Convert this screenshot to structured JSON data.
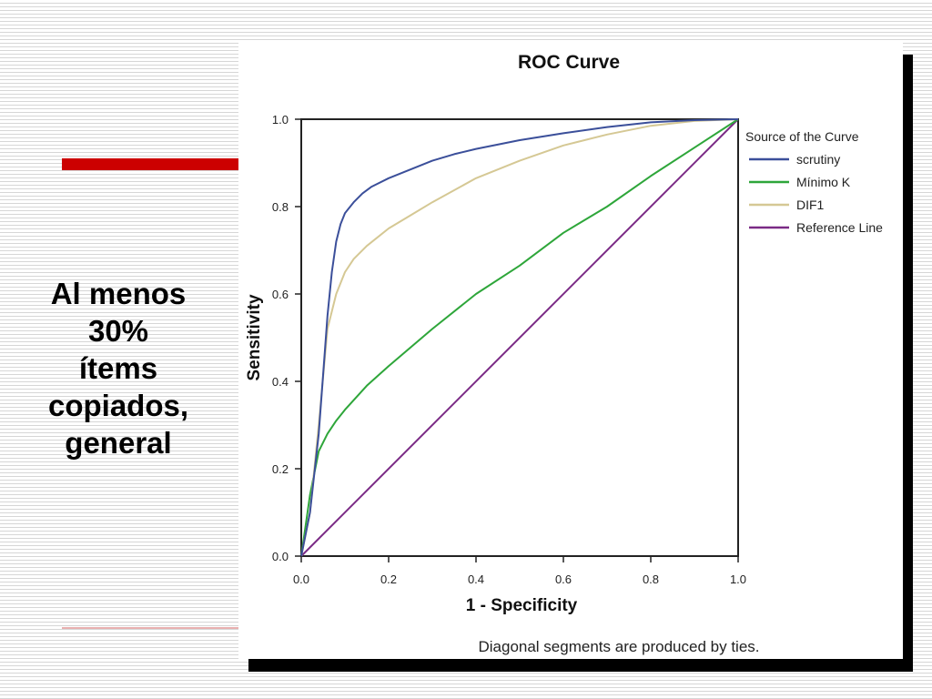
{
  "slide": {
    "side_title": "Al menos\n30%\nítems\ncopiados,\ngeneral",
    "accent_color": "#cc0000"
  },
  "chart_data": {
    "type": "line",
    "title": "ROC Curve",
    "xlabel": "1 - Specificity",
    "ylabel": "Sensitivity",
    "xlim": [
      0,
      1
    ],
    "ylim": [
      0,
      1
    ],
    "xticks": [
      "0.0",
      "0.2",
      "0.4",
      "0.6",
      "0.8",
      "1.0"
    ],
    "yticks": [
      "0.0",
      "0.2",
      "0.4",
      "0.6",
      "0.8",
      "1.0"
    ],
    "legend_title": "Source of the Curve",
    "legend_position": "right",
    "footnote": "Diagonal segments are produced by ties.",
    "grid": false,
    "series": [
      {
        "name": "scrutiny",
        "color": "#3b4f9a",
        "x": [
          0,
          0.02,
          0.04,
          0.06,
          0.07,
          0.08,
          0.09,
          0.1,
          0.12,
          0.14,
          0.16,
          0.2,
          0.25,
          0.3,
          0.35,
          0.4,
          0.5,
          0.6,
          0.7,
          0.8,
          0.9,
          1.0
        ],
        "y": [
          0,
          0.1,
          0.28,
          0.55,
          0.65,
          0.72,
          0.76,
          0.785,
          0.81,
          0.83,
          0.845,
          0.865,
          0.885,
          0.905,
          0.92,
          0.932,
          0.952,
          0.968,
          0.982,
          0.993,
          0.998,
          1.0
        ]
      },
      {
        "name": "Mínimo K",
        "color": "#2ea63a",
        "x": [
          0,
          0.02,
          0.04,
          0.06,
          0.08,
          0.1,
          0.15,
          0.2,
          0.3,
          0.4,
          0.5,
          0.6,
          0.7,
          0.8,
          0.9,
          1.0
        ],
        "y": [
          0,
          0.14,
          0.24,
          0.28,
          0.31,
          0.335,
          0.39,
          0.435,
          0.52,
          0.6,
          0.665,
          0.74,
          0.8,
          0.87,
          0.935,
          1.0
        ]
      },
      {
        "name": "DIF1",
        "color": "#d5c894",
        "x": [
          0,
          0.02,
          0.04,
          0.06,
          0.08,
          0.1,
          0.12,
          0.15,
          0.2,
          0.25,
          0.3,
          0.4,
          0.5,
          0.6,
          0.7,
          0.8,
          0.9,
          1.0
        ],
        "y": [
          0,
          0.1,
          0.3,
          0.52,
          0.6,
          0.65,
          0.68,
          0.71,
          0.75,
          0.78,
          0.81,
          0.865,
          0.905,
          0.94,
          0.965,
          0.985,
          0.996,
          1.0
        ]
      },
      {
        "name": "Reference Line",
        "color": "#7a2a85",
        "x": [
          0,
          1
        ],
        "y": [
          0,
          1
        ]
      }
    ]
  }
}
